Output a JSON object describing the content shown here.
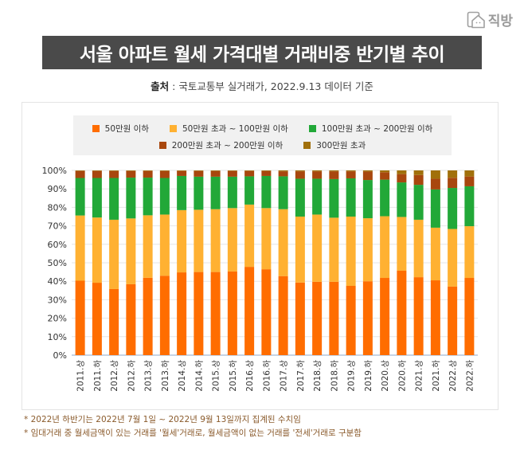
{
  "logo": {
    "text": "직방",
    "icon": "house-logo-icon"
  },
  "header": {
    "title": "서울 아파트 월세 가격대별 거래비중 반기별 추이",
    "source_label": "출처",
    "source_text": " : 국토교통부 실거래가, 2022.9.13 데이터 기준"
  },
  "notes": [
    "* 2022년 하반기는 2022년 7월 1일 ~ 2022년 9월 13일까지 집계된 수치임",
    "* 임대거래 중 월세금액이 있는 거래를 '월세'거래로, 월세금액이 없는 거래를 '전세'거래로 구분함"
  ],
  "chart_data": {
    "type": "bar",
    "stacked": true,
    "title": "서울 아파트 월세 가격대별 거래비중 반기별 추이",
    "xlabel": "",
    "ylabel": "",
    "ylim": [
      0,
      100
    ],
    "y_ticks": [
      "0%",
      "10%",
      "20%",
      "30%",
      "40%",
      "50%",
      "60%",
      "70%",
      "80%",
      "90%",
      "100%"
    ],
    "grid": true,
    "legend_position": "top",
    "categories": [
      "2011.상",
      "2011.하",
      "2012.상",
      "2012.하",
      "2013.상",
      "2013.하",
      "2014.상",
      "2014.하",
      "2015.상",
      "2015.하",
      "2016.상",
      "2016.하",
      "2017.상",
      "2017.하",
      "2018.상",
      "2018.하",
      "2019.상",
      "2019.하",
      "2020.상",
      "2020.하",
      "2021.상",
      "2021.하",
      "2022.상",
      "2022.하"
    ],
    "series": [
      {
        "name": "50만원 이하",
        "color": "#ff6d00",
        "values": [
          40.3,
          39.2,
          35.8,
          38.4,
          41.9,
          43.0,
          44.8,
          45.0,
          45.0,
          45.3,
          47.8,
          46.5,
          42.8,
          39.3,
          39.7,
          39.7,
          37.5,
          40.0,
          41.8,
          45.7,
          42.2,
          40.5,
          37.1,
          41.8
        ]
      },
      {
        "name": "50만원 초과 ~ 100만원 이하",
        "color": "#ffb132",
        "values": [
          35.3,
          35.3,
          37.5,
          35.6,
          33.8,
          33.1,
          33.7,
          33.7,
          34.0,
          34.3,
          33.7,
          33.1,
          36.2,
          35.7,
          36.4,
          34.7,
          37.5,
          34.1,
          33.4,
          29.1,
          31.1,
          28.5,
          31.2,
          28.0
        ]
      },
      {
        "name": "100만원 초과 ~ 200만원 이하",
        "color": "#22a838",
        "values": [
          20.3,
          21.4,
          22.6,
          22.1,
          20.4,
          19.8,
          18.5,
          17.9,
          17.6,
          17.0,
          15.3,
          17.4,
          17.8,
          20.5,
          19.4,
          20.9,
          20.7,
          20.7,
          19.8,
          18.7,
          18.9,
          20.7,
          22.2,
          21.6
        ]
      },
      {
        "name": "200만원 초과 ~ 200만원 이하",
        "color": "#a8470e",
        "values": [
          3.8,
          3.8,
          3.8,
          3.6,
          3.6,
          3.8,
          2.7,
          3.1,
          3.1,
          3.1,
          2.9,
          2.7,
          2.7,
          4.0,
          4.0,
          4.2,
          3.8,
          4.6,
          4.0,
          4.5,
          5.3,
          5.8,
          5.5,
          5.3
        ]
      },
      {
        "name": "300만원 초과",
        "color": "#a1700b",
        "values": [
          0.3,
          0.3,
          0.3,
          0.3,
          0.3,
          0.3,
          0.3,
          0.3,
          0.3,
          0.3,
          0.3,
          0.3,
          0.5,
          0.5,
          0.5,
          0.5,
          0.5,
          0.6,
          1.0,
          2.0,
          2.5,
          4.5,
          4.0,
          3.3
        ]
      }
    ]
  }
}
